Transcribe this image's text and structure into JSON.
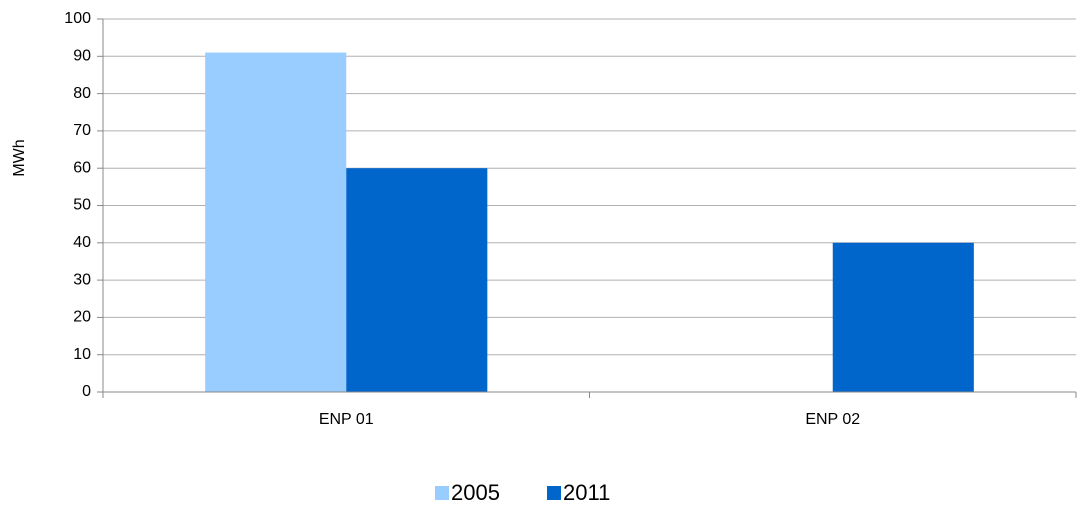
{
  "chart_data": {
    "type": "bar",
    "y_label": "MWh",
    "categories": [
      "ENP 01",
      "ENP 02"
    ],
    "series": [
      {
        "name": "2005",
        "color": "#99ccff",
        "values": [
          91,
          0
        ]
      },
      {
        "name": "2011",
        "color": "#0066cc",
        "values": [
          60,
          40
        ]
      }
    ],
    "ylim": [
      0,
      100
    ],
    "yticks": [
      0,
      10,
      20,
      30,
      40,
      50,
      60,
      70,
      80,
      90,
      100
    ],
    "grid": true,
    "legend": "bottom"
  }
}
